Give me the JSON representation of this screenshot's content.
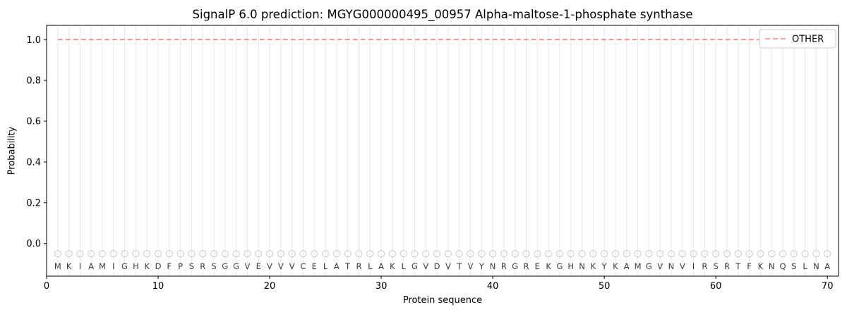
{
  "chart_data": {
    "type": "line",
    "title": "SignalP 6.0 prediction: MGYG000000495_00957 Alpha-maltose-1-phosphate synthase",
    "xlabel": "Protein sequence",
    "ylabel": "Probability",
    "xlim": [
      0,
      71
    ],
    "ylim": [
      -0.16,
      1.07
    ],
    "xticks": [
      0,
      10,
      20,
      30,
      40,
      50,
      60,
      70
    ],
    "yticks": [
      0.0,
      0.2,
      0.4,
      0.6,
      0.8,
      1.0
    ],
    "grid": "vertical-line-per-residue",
    "legend": {
      "position": "upper right",
      "entries": [
        {
          "label": "OTHER",
          "color": "#f87b72",
          "style": "dashed"
        }
      ]
    },
    "series": [
      {
        "name": "OTHER",
        "style": "dashed",
        "color": "#f87b72",
        "y_constant": 1.0,
        "x_range": [
          1,
          70
        ]
      }
    ],
    "residues": [
      "M",
      "K",
      "I",
      "A",
      "M",
      "I",
      "G",
      "H",
      "K",
      "D",
      "F",
      "P",
      "S",
      "R",
      "S",
      "G",
      "G",
      "V",
      "E",
      "V",
      "V",
      "V",
      "C",
      "E",
      "L",
      "A",
      "T",
      "R",
      "L",
      "A",
      "K",
      "L",
      "G",
      "V",
      "D",
      "V",
      "T",
      "V",
      "Y",
      "N",
      "R",
      "G",
      "R",
      "E",
      "K",
      "G",
      "H",
      "N",
      "K",
      "Y",
      "K",
      "A",
      "M",
      "G",
      "V",
      "N",
      "V",
      "I",
      "R",
      "S",
      "R",
      "T",
      "F",
      "K",
      "N",
      "Q",
      "S",
      "L",
      "N",
      "A"
    ],
    "marker_y": -0.05,
    "residue_label_y": -0.112,
    "marker_style": {
      "shape": "open-circle",
      "radius": 4.6,
      "stroke": "#c9c9c9",
      "fill": "none"
    },
    "colors": {
      "grid": "#e8e8e8",
      "spine": "#000000",
      "tick_text": "#000000",
      "residue_text": "#3c3c3c",
      "legend_border": "#cccccc",
      "legend_bg": "#ffffff"
    }
  }
}
